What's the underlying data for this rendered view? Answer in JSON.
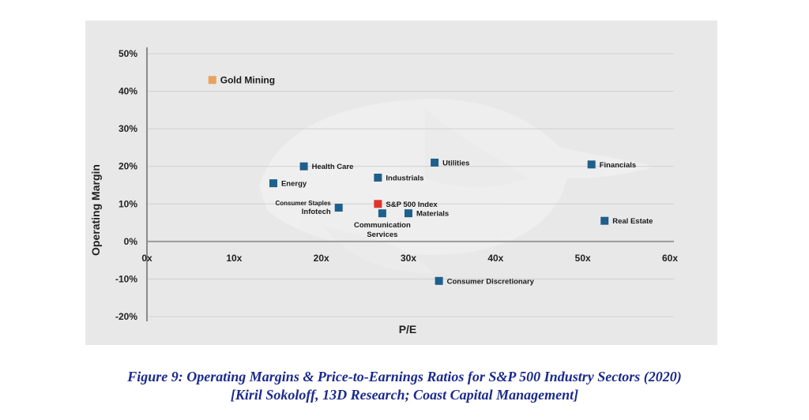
{
  "chart_data": {
    "type": "scatter",
    "xlabel": "P/E",
    "ylabel": "Operating Margin",
    "xlim": [
      0,
      60
    ],
    "ylim": [
      -20,
      50
    ],
    "x_ticks": [
      0,
      10,
      20,
      30,
      40,
      50,
      60
    ],
    "x_tick_labels": [
      "0x",
      "10x",
      "20x",
      "30x",
      "40x",
      "50x",
      "60x"
    ],
    "y_ticks": [
      50,
      40,
      30,
      20,
      10,
      0,
      -10,
      -20
    ],
    "y_tick_labels": [
      "50%",
      "40%",
      "30%",
      "20%",
      "10%",
      "0%",
      "-10%",
      "-20%"
    ],
    "grid": "horizontal",
    "colors": {
      "sector": "#1f5f8b",
      "index": "#e0332b",
      "gold": "#e8a25c",
      "index_label": "#e8443a",
      "gold_label": "#e8a25c"
    },
    "points": [
      {
        "label": "Gold Mining",
        "x": 7.5,
        "y": 43,
        "color": "#e8a25c",
        "label_color": "#e8a25c",
        "label_pos": "right"
      },
      {
        "label": "Health Care",
        "x": 18,
        "y": 20,
        "color": "#1f5f8b",
        "label_pos": "right"
      },
      {
        "label": "Energy",
        "x": 14.5,
        "y": 15.5,
        "color": "#1f5f8b",
        "label_pos": "right"
      },
      {
        "label": "Industrials",
        "x": 26.5,
        "y": 17,
        "color": "#1f5f8b",
        "label_pos": "right"
      },
      {
        "label": "Utilities",
        "x": 33,
        "y": 21,
        "color": "#1f5f8b",
        "label_pos": "right"
      },
      {
        "label": "Financials",
        "x": 51,
        "y": 20.5,
        "color": "#1f5f8b",
        "label_pos": "right"
      },
      {
        "label": "S&P 500 Index",
        "x": 26.5,
        "y": 10,
        "color": "#e0332b",
        "label_color": "#e8443a",
        "label_pos": "right"
      },
      {
        "label": "Infotech",
        "x": 22,
        "y": 9,
        "color": "#1f5f8b",
        "label_pos": "left-below"
      },
      {
        "label": "Consumer Staples",
        "x": 22,
        "y": 9,
        "color": "#1f5f8b",
        "label_pos": "left-above",
        "marker": false
      },
      {
        "label": "Communication Services",
        "x": 27,
        "y": 7.5,
        "color": "#1f5f8b",
        "label_pos": "below"
      },
      {
        "label": "Materials",
        "x": 30,
        "y": 7.5,
        "color": "#1f5f8b",
        "label_pos": "right"
      },
      {
        "label": "Real Estate",
        "x": 52.5,
        "y": 5.5,
        "color": "#1f5f8b",
        "label_pos": "right"
      },
      {
        "label": "Consumer Discretionary",
        "x": 33.5,
        "y": -10.5,
        "color": "#1f5f8b",
        "label_pos": "right"
      }
    ]
  },
  "caption": {
    "line1": "Figure 9:  Operating Margins & Price-to-Earnings Ratios for S&P 500 Industry Sectors (2020)",
    "line2": "[Kiril Sokoloff, 13D Research; Coast Capital Management]"
  }
}
